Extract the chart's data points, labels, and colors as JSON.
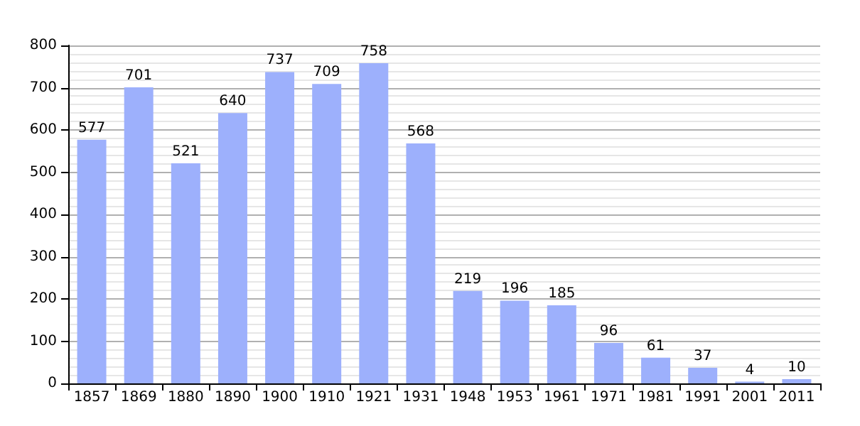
{
  "chart_data": {
    "type": "bar",
    "categories": [
      "1857",
      "1869",
      "1880",
      "1890",
      "1900",
      "1910",
      "1921",
      "1931",
      "1948",
      "1953",
      "1961",
      "1971",
      "1981",
      "1991",
      "2001",
      "2011"
    ],
    "values": [
      577,
      701,
      521,
      640,
      737,
      709,
      758,
      568,
      219,
      196,
      185,
      96,
      61,
      37,
      4,
      10
    ],
    "color": "#9db0fc",
    "ylim": [
      0,
      800
    ],
    "yticks": [
      0,
      100,
      200,
      300,
      400,
      500,
      600,
      700,
      800
    ],
    "grid": true,
    "data_labels": true
  }
}
